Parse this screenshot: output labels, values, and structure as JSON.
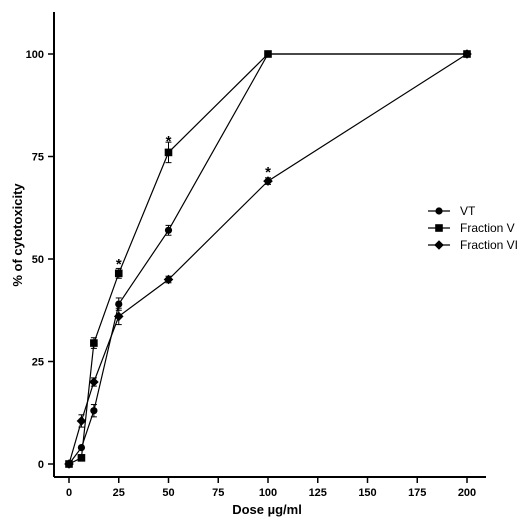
{
  "chart_data": {
    "type": "line",
    "xlabel": "Dose µg/ml",
    "ylabel": "% of cytotoxicity",
    "xlim": [
      0,
      200
    ],
    "ylim": [
      0,
      110
    ],
    "xticks": [
      0,
      25,
      50,
      75,
      100,
      125,
      150,
      175,
      200
    ],
    "yticks": [
      0,
      25,
      50,
      75,
      100
    ],
    "legend_position": "right",
    "series": [
      {
        "name": "VT",
        "marker": "circle",
        "x": [
          0,
          6.25,
          12.5,
          25,
          50,
          100,
          200
        ],
        "y": [
          0,
          4,
          13,
          39,
          57,
          100,
          100
        ],
        "err": [
          0,
          0,
          1.5,
          1.5,
          1.2,
          0,
          0
        ]
      },
      {
        "name": "Fraction V",
        "marker": "square",
        "x": [
          0,
          6.25,
          12.5,
          25,
          50,
          100,
          200
        ],
        "y": [
          0,
          1.5,
          29.5,
          46.5,
          76,
          100,
          100
        ],
        "err": [
          0,
          0,
          1.3,
          1.2,
          2.5,
          0,
          0
        ]
      },
      {
        "name": "Fraction VI",
        "marker": "diamond",
        "x": [
          0,
          6.25,
          12.5,
          25,
          50,
          100,
          200
        ],
        "y": [
          0,
          10.5,
          20,
          36,
          45,
          69,
          100
        ],
        "err": [
          0,
          1.5,
          1,
          2,
          0.8,
          0.8,
          0
        ]
      }
    ],
    "annotations": [
      {
        "text": "*",
        "x": 25,
        "y": 49
      },
      {
        "text": "*",
        "x": 50,
        "y": 79
      },
      {
        "text": "*",
        "x": 100,
        "y": 71.5
      }
    ]
  }
}
